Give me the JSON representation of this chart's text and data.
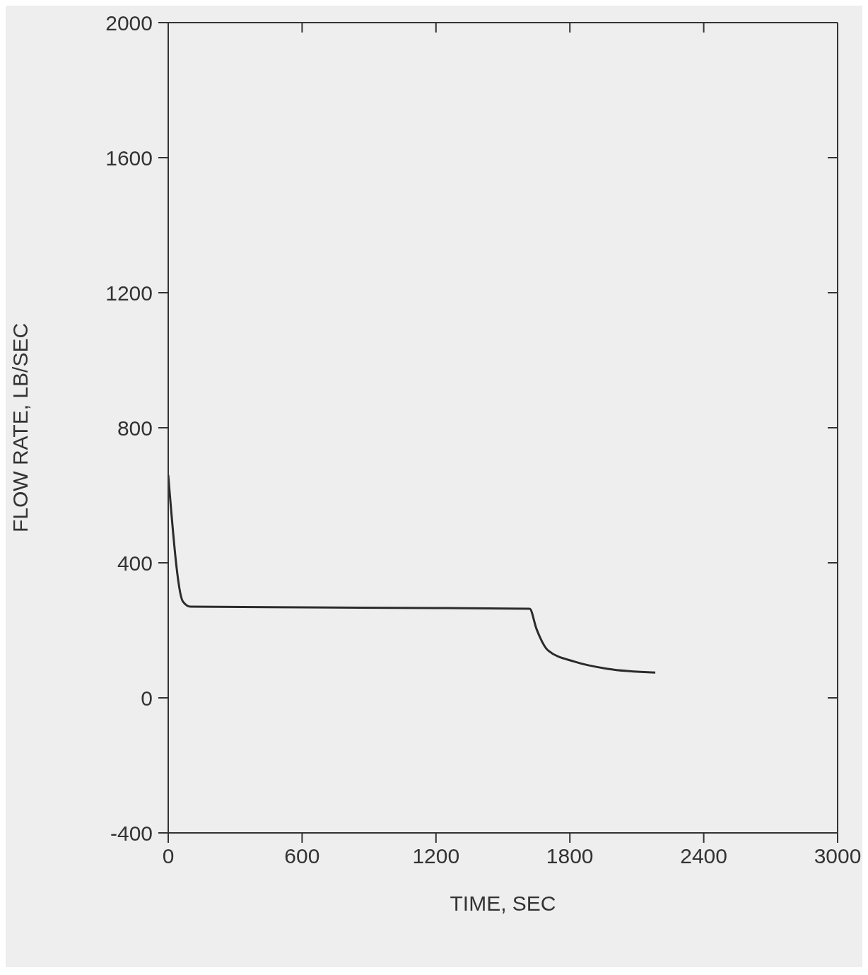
{
  "chart_data": {
    "type": "line",
    "xlabel": "TIME, SEC",
    "ylabel": "FLOW RATE, LB/SEC",
    "x": [
      0,
      66,
      100,
      600,
      1200,
      1620,
      1650,
      1703,
      1822,
      1969,
      2183
    ],
    "values": [
      660,
      285,
      270,
      268,
      266,
      264,
      205,
      140,
      107,
      86,
      75
    ],
    "color": "#2b2b2b",
    "xlim": [
      0,
      3000
    ],
    "xticks": [
      0,
      600,
      1200,
      1800,
      2400,
      3000
    ],
    "ylim": [
      -400,
      2000
    ],
    "yticks": [
      -400,
      0,
      400,
      800,
      1200,
      1600,
      2000
    ],
    "marker": "none",
    "line_style": "solid"
  }
}
